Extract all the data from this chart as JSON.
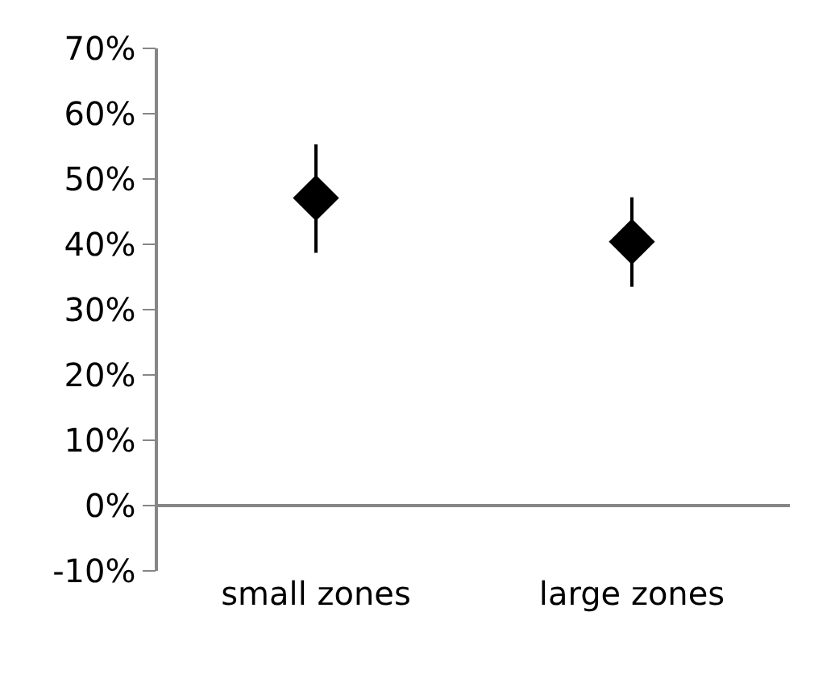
{
  "chart_data": {
    "type": "scatter",
    "categories": [
      "small zones",
      "large zones"
    ],
    "values": [
      47.1,
      40.4
    ],
    "errors": [
      [
        38.7,
        55.3
      ],
      [
        33.5,
        47.2
      ]
    ],
    "color": "#000000",
    "marker": "diamond",
    "ylim": [
      -10,
      70
    ],
    "yticks": [
      {
        "value": -10,
        "label": "-10%"
      },
      {
        "value": 0,
        "label": "0%"
      },
      {
        "value": 10,
        "label": "10%"
      },
      {
        "value": 20,
        "label": "20%"
      },
      {
        "value": 30,
        "label": "30%"
      },
      {
        "value": 40,
        "label": "40%"
      },
      {
        "value": 50,
        "label": "50%"
      },
      {
        "value": 60,
        "label": "60%"
      },
      {
        "value": 70,
        "label": "70%"
      }
    ]
  }
}
